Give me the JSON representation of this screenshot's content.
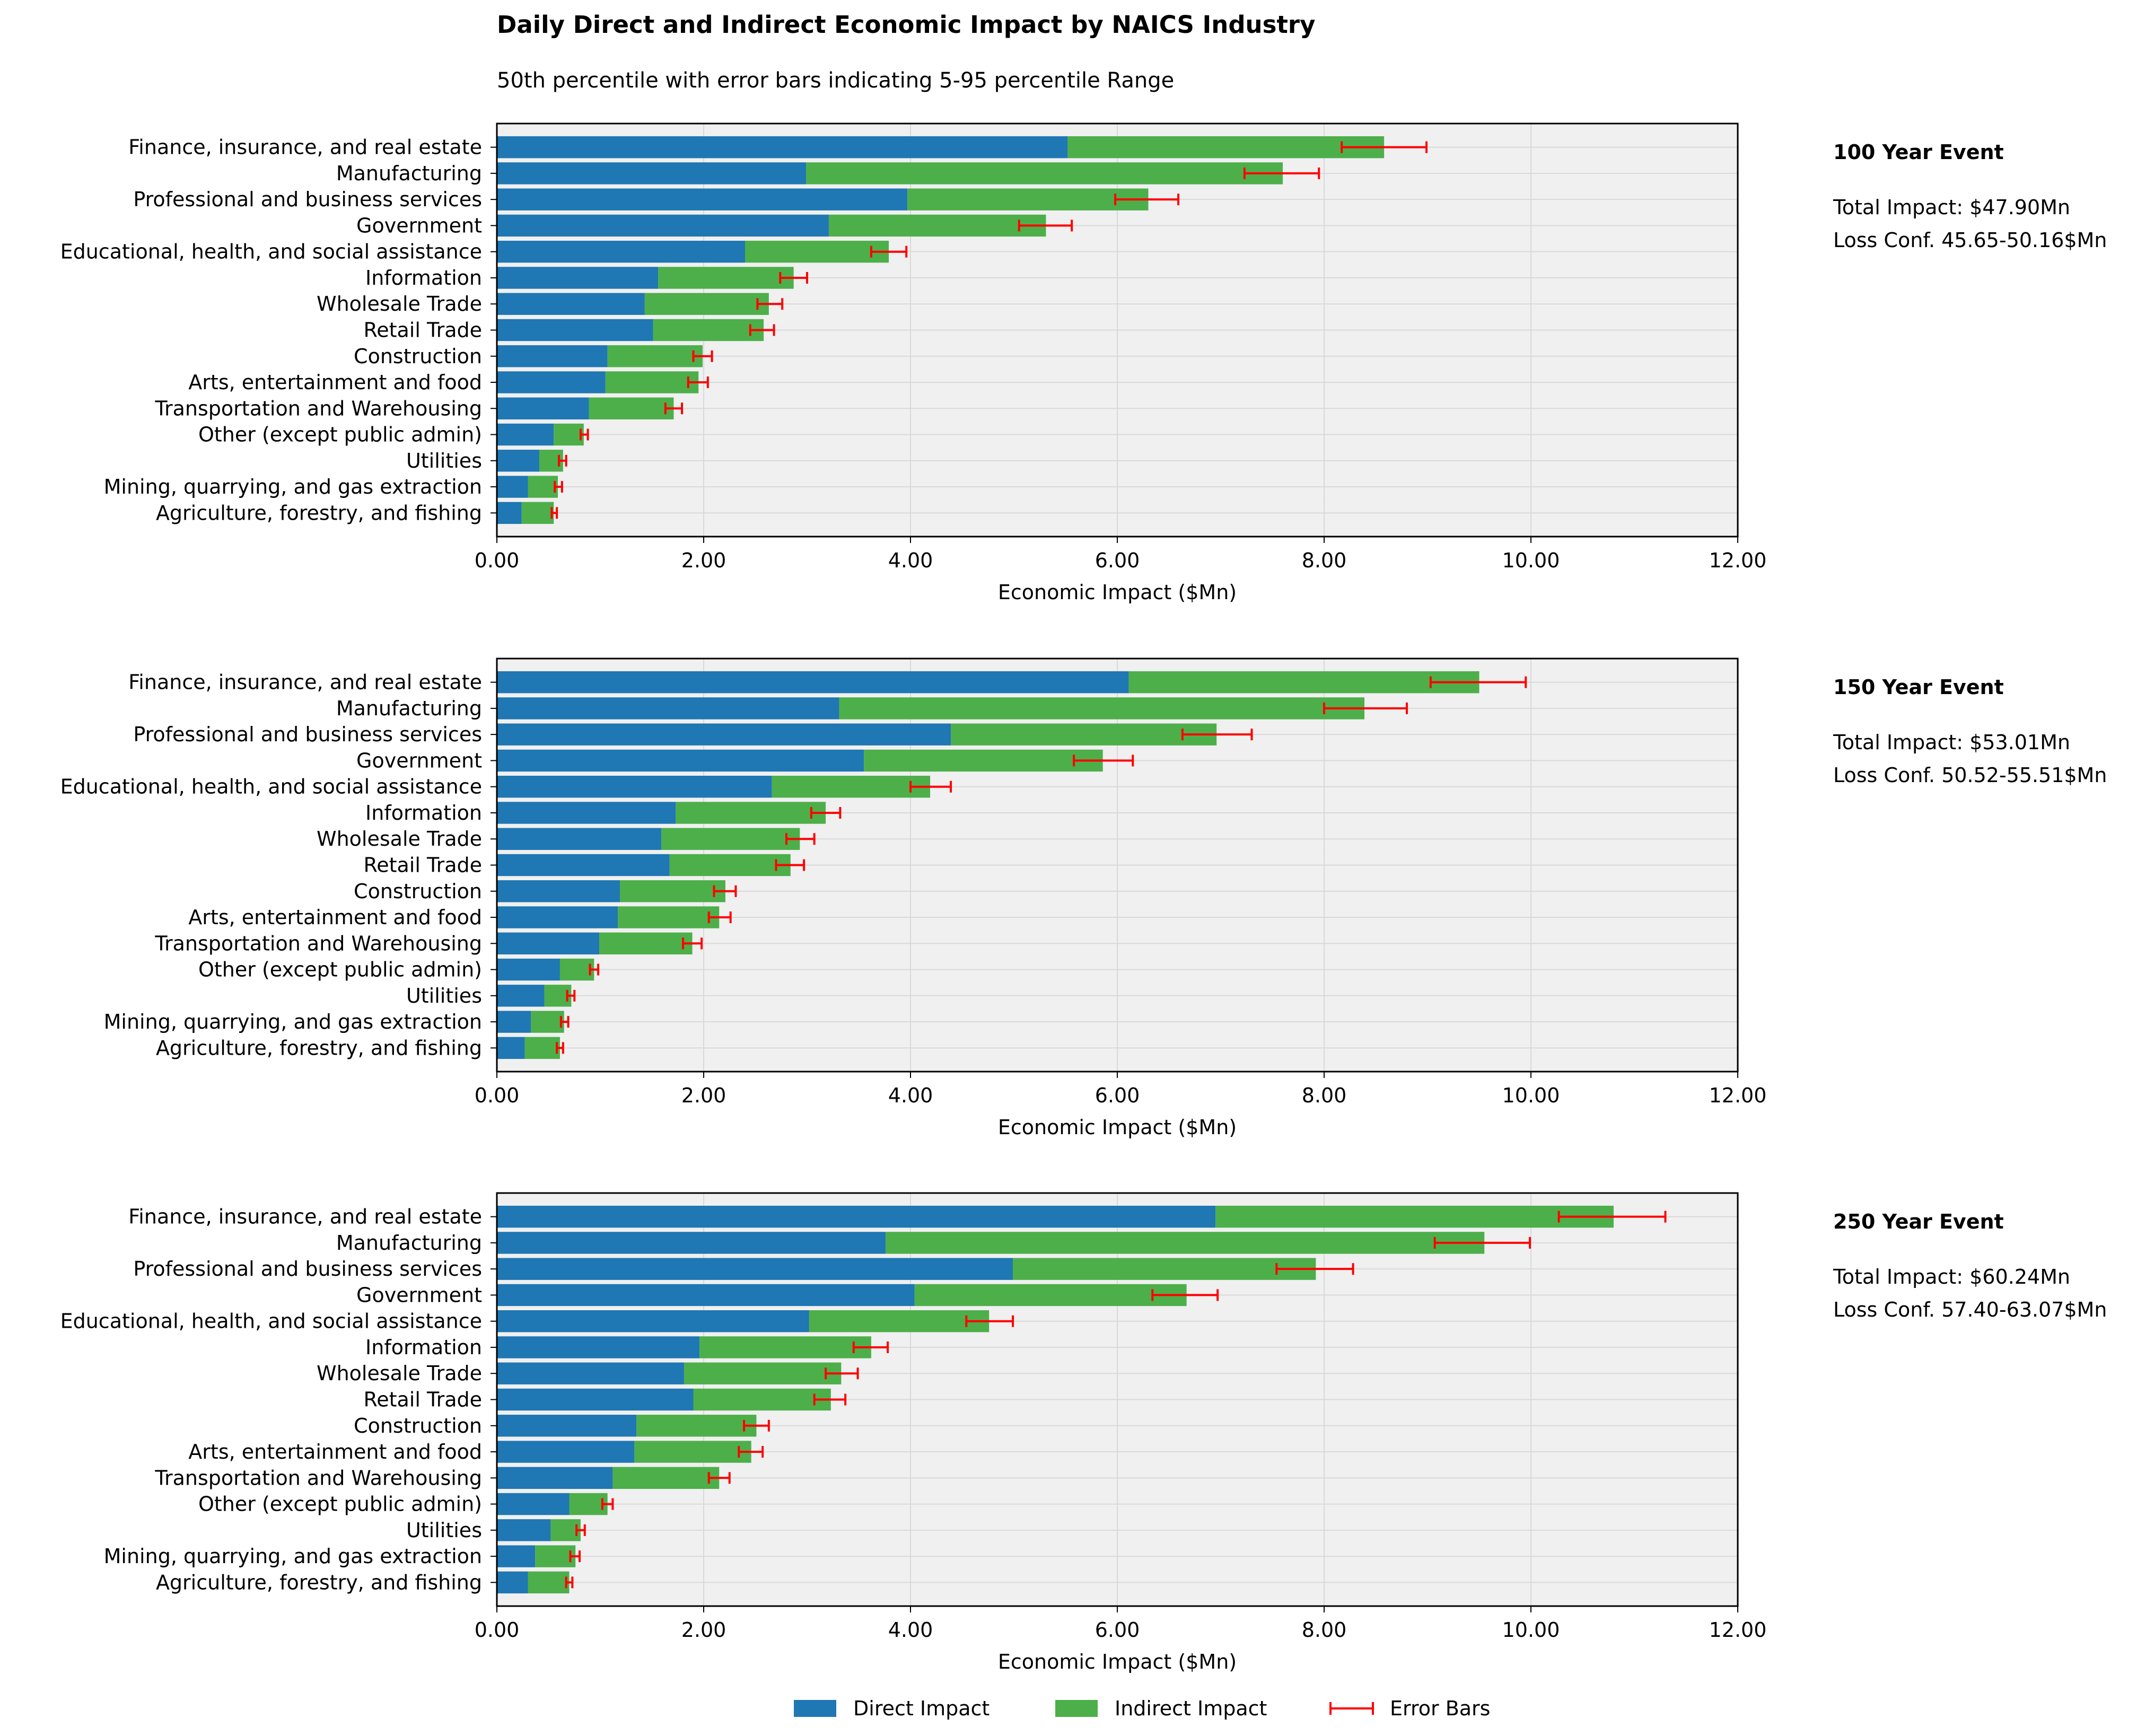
{
  "title": "Daily Direct and Indirect Economic Impact by NAICS Industry",
  "subtitle": "50th percentile with error bars indicating 5-95 percentile Range",
  "legend": {
    "placement": "bottom-center",
    "items": [
      {
        "label": "Direct Impact",
        "color": "#1f77b4",
        "kind": "bar"
      },
      {
        "label": "Indirect Impact",
        "color": "#4daf4a",
        "kind": "bar"
      },
      {
        "label": "Error Bars",
        "color": "#ff0000",
        "kind": "errorbar"
      }
    ]
  },
  "colors": {
    "direct": "#1f77b4",
    "indirect": "#4daf4a",
    "error": "#ff0000",
    "plot_bg": "#f0f0f0",
    "grid": "#d9d9d9"
  },
  "chart_data": [
    {
      "type": "bar",
      "orientation": "horizontal",
      "stacked": true,
      "panel_title": "100 Year Event",
      "total_impact": "Total Impact: $47.90Mn",
      "loss_conf": "Loss Conf. 45.65-50.16$Mn",
      "xlabel": "Economic Impact ($Mn)",
      "xlim": [
        0,
        12
      ],
      "xticks": [
        "0.00",
        "2.00",
        "4.00",
        "6.00",
        "8.00",
        "10.00",
        "12.00"
      ],
      "xtick_values": [
        0,
        2,
        4,
        6,
        8,
        10,
        12
      ],
      "grid": true,
      "categories": [
        "Finance, insurance, and real estate",
        "Manufacturing",
        "Professional and business services",
        "Government",
        "Educational, health, and social assistance",
        "Information",
        "Wholesale Trade",
        "Retail Trade",
        "Construction",
        "Arts, entertainment and food",
        "Transportation and Warehousing",
        "Other (except public admin)",
        "Utilities",
        "Mining, quarrying, and gas extraction",
        "Agriculture, forestry, and fishing"
      ],
      "series": [
        {
          "name": "Direct Impact",
          "values": [
            5.52,
            2.99,
            3.97,
            3.21,
            2.4,
            1.56,
            1.43,
            1.51,
            1.07,
            1.05,
            0.89,
            0.55,
            0.41,
            0.3,
            0.24
          ]
        },
        {
          "name": "Indirect Impact",
          "values": [
            3.06,
            4.61,
            2.33,
            2.1,
            1.39,
            1.31,
            1.2,
            1.07,
            0.92,
            0.9,
            0.82,
            0.29,
            0.23,
            0.29,
            0.31
          ]
        }
      ],
      "error_low": [
        8.17,
        7.23,
        5.98,
        5.05,
        3.62,
        2.74,
        2.52,
        2.45,
        1.9,
        1.85,
        1.63,
        0.81,
        0.6,
        0.56,
        0.53
      ],
      "error_high": [
        8.99,
        7.95,
        6.59,
        5.56,
        3.96,
        3.0,
        2.76,
        2.68,
        2.08,
        2.04,
        1.79,
        0.88,
        0.67,
        0.63,
        0.58
      ]
    },
    {
      "type": "bar",
      "orientation": "horizontal",
      "stacked": true,
      "panel_title": "150 Year Event",
      "total_impact": "Total Impact: $53.01Mn",
      "loss_conf": "Loss Conf. 50.52-55.51$Mn",
      "xlabel": "Economic Impact ($Mn)",
      "xlim": [
        0,
        12
      ],
      "xticks": [
        "0.00",
        "2.00",
        "4.00",
        "6.00",
        "8.00",
        "10.00",
        "12.00"
      ],
      "xtick_values": [
        0,
        2,
        4,
        6,
        8,
        10,
        12
      ],
      "grid": true,
      "categories": [
        "Finance, insurance, and real estate",
        "Manufacturing",
        "Professional and business services",
        "Government",
        "Educational, health, and social assistance",
        "Information",
        "Wholesale Trade",
        "Retail Trade",
        "Construction",
        "Arts, entertainment and food",
        "Transportation and Warehousing",
        "Other (except public admin)",
        "Utilities",
        "Mining, quarrying, and gas extraction",
        "Agriculture, forestry, and fishing"
      ],
      "series": [
        {
          "name": "Direct Impact",
          "values": [
            6.11,
            3.31,
            4.39,
            3.55,
            2.66,
            1.73,
            1.59,
            1.67,
            1.19,
            1.17,
            0.99,
            0.61,
            0.46,
            0.33,
            0.27
          ]
        },
        {
          "name": "Indirect Impact",
          "values": [
            3.39,
            5.08,
            2.57,
            2.31,
            1.53,
            1.45,
            1.34,
            1.17,
            1.02,
            0.98,
            0.9,
            0.33,
            0.26,
            0.32,
            0.34
          ]
        }
      ],
      "error_low": [
        9.03,
        8.0,
        6.63,
        5.58,
        4.0,
        3.04,
        2.8,
        2.7,
        2.1,
        2.05,
        1.8,
        0.9,
        0.68,
        0.62,
        0.58
      ],
      "error_high": [
        9.95,
        8.8,
        7.3,
        6.15,
        4.39,
        3.32,
        3.07,
        2.97,
        2.31,
        2.26,
        1.98,
        0.98,
        0.75,
        0.69,
        0.64
      ]
    },
    {
      "type": "bar",
      "orientation": "horizontal",
      "stacked": true,
      "panel_title": "250 Year Event",
      "total_impact": "Total Impact: $60.24Mn",
      "loss_conf": "Loss Conf. 57.40-63.07$Mn",
      "xlabel": "Economic Impact ($Mn)",
      "xlim": [
        0,
        12
      ],
      "xticks": [
        "0.00",
        "2.00",
        "4.00",
        "6.00",
        "8.00",
        "10.00",
        "12.00"
      ],
      "xtick_values": [
        0,
        2,
        4,
        6,
        8,
        10,
        12
      ],
      "grid": true,
      "categories": [
        "Finance, insurance, and real estate",
        "Manufacturing",
        "Professional and business services",
        "Government",
        "Educational, health, and social assistance",
        "Information",
        "Wholesale Trade",
        "Retail Trade",
        "Construction",
        "Arts, entertainment and food",
        "Transportation and Warehousing",
        "Other (except public admin)",
        "Utilities",
        "Mining, quarrying, and gas extraction",
        "Agriculture, forestry, and fishing"
      ],
      "series": [
        {
          "name": "Direct Impact",
          "values": [
            6.95,
            3.76,
            4.99,
            4.04,
            3.02,
            1.96,
            1.81,
            1.9,
            1.35,
            1.33,
            1.12,
            0.7,
            0.52,
            0.37,
            0.3
          ]
        },
        {
          "name": "Indirect Impact",
          "values": [
            3.85,
            5.79,
            2.93,
            2.63,
            1.74,
            1.66,
            1.52,
            1.33,
            1.16,
            1.13,
            1.03,
            0.37,
            0.29,
            0.39,
            0.4
          ]
        }
      ],
      "error_low": [
        10.27,
        9.07,
        7.54,
        6.34,
        4.54,
        3.45,
        3.18,
        3.07,
        2.39,
        2.34,
        2.05,
        1.02,
        0.77,
        0.71,
        0.67
      ],
      "error_high": [
        11.3,
        9.99,
        8.28,
        6.97,
        4.99,
        3.78,
        3.49,
        3.37,
        2.63,
        2.57,
        2.25,
        1.12,
        0.85,
        0.8,
        0.73
      ]
    }
  ]
}
